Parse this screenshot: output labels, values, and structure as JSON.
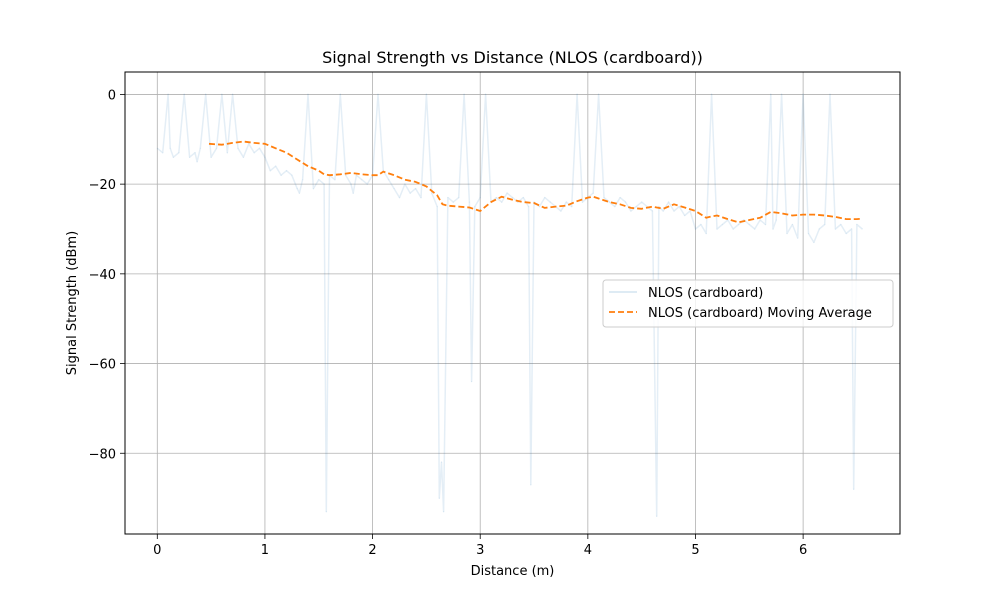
{
  "chart_data": {
    "type": "line",
    "title": "Signal Strength vs Distance (NLOS (cardboard))",
    "xlabel": "Distance (m)",
    "ylabel": "Signal Strength (dBm)",
    "xlim": [
      -0.3,
      6.9
    ],
    "ylim": [
      -98,
      5
    ],
    "xticks": [
      0,
      1,
      2,
      3,
      4,
      5,
      6
    ],
    "yticks": [
      0,
      -20,
      -40,
      -60,
      -80
    ],
    "xtick_labels": [
      "0",
      "1",
      "2",
      "3",
      "4",
      "5",
      "6"
    ],
    "ytick_labels": [
      "0",
      "−20",
      "−40",
      "−60",
      "−80"
    ],
    "grid": true,
    "legend_position": "center-right",
    "series": [
      {
        "name": "NLOS (cardboard)",
        "color": "#1f77b4",
        "opacity": 0.12,
        "style": "solid",
        "x": [
          0.0,
          0.05,
          0.1,
          0.12,
          0.15,
          0.2,
          0.25,
          0.3,
          0.35,
          0.37,
          0.4,
          0.45,
          0.5,
          0.55,
          0.6,
          0.65,
          0.7,
          0.75,
          0.8,
          0.85,
          0.9,
          0.95,
          1.0,
          1.05,
          1.1,
          1.15,
          1.2,
          1.25,
          1.3,
          1.32,
          1.35,
          1.4,
          1.45,
          1.5,
          1.55,
          1.57,
          1.6,
          1.65,
          1.7,
          1.75,
          1.8,
          1.82,
          1.85,
          1.9,
          1.95,
          2.0,
          2.05,
          2.1,
          2.15,
          2.2,
          2.25,
          2.3,
          2.35,
          2.4,
          2.45,
          2.5,
          2.55,
          2.6,
          2.62,
          2.64,
          2.66,
          2.7,
          2.75,
          2.8,
          2.85,
          2.9,
          2.92,
          2.95,
          3.0,
          3.05,
          3.1,
          3.15,
          3.2,
          3.25,
          3.3,
          3.35,
          3.4,
          3.45,
          3.47,
          3.5,
          3.55,
          3.6,
          3.65,
          3.7,
          3.75,
          3.8,
          3.85,
          3.9,
          3.95,
          4.0,
          4.05,
          4.1,
          4.15,
          4.2,
          4.25,
          4.3,
          4.35,
          4.4,
          4.45,
          4.5,
          4.55,
          4.6,
          4.64,
          4.66,
          4.7,
          4.75,
          4.8,
          4.85,
          4.9,
          4.95,
          5.0,
          5.05,
          5.1,
          5.15,
          5.2,
          5.25,
          5.3,
          5.35,
          5.4,
          5.45,
          5.5,
          5.55,
          5.6,
          5.65,
          5.7,
          5.72,
          5.75,
          5.8,
          5.85,
          5.9,
          5.95,
          6.0,
          6.05,
          6.1,
          6.15,
          6.2,
          6.25,
          6.3,
          6.35,
          6.4,
          6.45,
          6.47,
          6.5,
          6.55
        ],
        "y": [
          -12,
          -13,
          0,
          -12,
          -14,
          -13,
          0,
          -14,
          -13,
          -15,
          -12,
          0,
          -14,
          -12,
          0,
          -13,
          0,
          -12,
          -14,
          -11,
          -13,
          -12,
          -14,
          -17,
          -16,
          -18,
          -17,
          -18,
          -21,
          -22,
          -19,
          0,
          -21,
          -19,
          -20,
          -93,
          -18,
          -19,
          0,
          -18,
          -20,
          -22,
          -18,
          -19,
          -20,
          -18,
          0,
          -17,
          -19,
          -21,
          -23,
          -20,
          -22,
          -21,
          -23,
          0,
          -22,
          -25,
          -90,
          -82,
          -93,
          -23,
          -24,
          -23,
          0,
          -24,
          -64,
          -25,
          -23,
          0,
          -24,
          -23,
          -24,
          -22,
          -23,
          -24,
          -23,
          -25,
          -87,
          -24,
          -25,
          -23,
          -24,
          -25,
          -26,
          -24,
          -25,
          0,
          -24,
          -23,
          -22,
          0,
          -23,
          -24,
          -25,
          -23,
          -24,
          -26,
          -25,
          -24,
          -25,
          -26,
          -94,
          -25,
          -26,
          -24,
          -26,
          -25,
          -27,
          -26,
          -30,
          -29,
          -31,
          0,
          -30,
          -29,
          -28,
          -30,
          -29,
          -28,
          -29,
          -30,
          -28,
          -29,
          0,
          -30,
          -28,
          0,
          -31,
          -29,
          -32,
          0,
          -31,
          -33,
          -30,
          -29,
          0,
          -30,
          -29,
          -31,
          -30,
          -88,
          -29,
          -30
        ]
      },
      {
        "name": "NLOS (cardboard) Moving Average",
        "color": "#ff7f0e",
        "opacity": 1,
        "style": "dashed",
        "x": [
          0.48,
          0.6,
          0.7,
          0.8,
          0.9,
          1.0,
          1.1,
          1.2,
          1.3,
          1.4,
          1.5,
          1.55,
          1.6,
          1.7,
          1.8,
          1.9,
          2.0,
          2.05,
          2.1,
          2.2,
          2.3,
          2.4,
          2.5,
          2.55,
          2.6,
          2.65,
          2.7,
          2.8,
          2.9,
          3.0,
          3.1,
          3.2,
          3.3,
          3.4,
          3.5,
          3.6,
          3.7,
          3.8,
          3.9,
          4.0,
          4.05,
          4.1,
          4.2,
          4.3,
          4.4,
          4.5,
          4.6,
          4.7,
          4.8,
          4.9,
          5.0,
          5.1,
          5.15,
          5.2,
          5.3,
          5.4,
          5.5,
          5.6,
          5.7,
          5.8,
          5.9,
          6.0,
          6.1,
          6.2,
          6.3,
          6.4,
          6.5,
          6.55
        ],
        "y": [
          -11.0,
          -11.2,
          -10.8,
          -10.5,
          -10.8,
          -11.0,
          -12.0,
          -13.0,
          -14.5,
          -16.0,
          -17.0,
          -17.8,
          -18.0,
          -17.8,
          -17.5,
          -17.8,
          -18.0,
          -18.0,
          -17.2,
          -18.0,
          -19.0,
          -19.5,
          -20.5,
          -21.5,
          -22.5,
          -24.5,
          -24.8,
          -25.0,
          -25.2,
          -26.0,
          -24.0,
          -22.8,
          -23.5,
          -24.0,
          -24.2,
          -25.3,
          -25.0,
          -24.8,
          -23.8,
          -23.0,
          -22.8,
          -23.2,
          -24.0,
          -24.5,
          -25.3,
          -25.5,
          -25.0,
          -25.5,
          -24.5,
          -25.2,
          -26.0,
          -27.5,
          -27.2,
          -27.0,
          -27.8,
          -28.5,
          -28.0,
          -27.5,
          -26.2,
          -26.5,
          -27.0,
          -26.8,
          -26.8,
          -27.0,
          -27.3,
          -27.8,
          -27.8,
          -27.7
        ]
      }
    ]
  }
}
